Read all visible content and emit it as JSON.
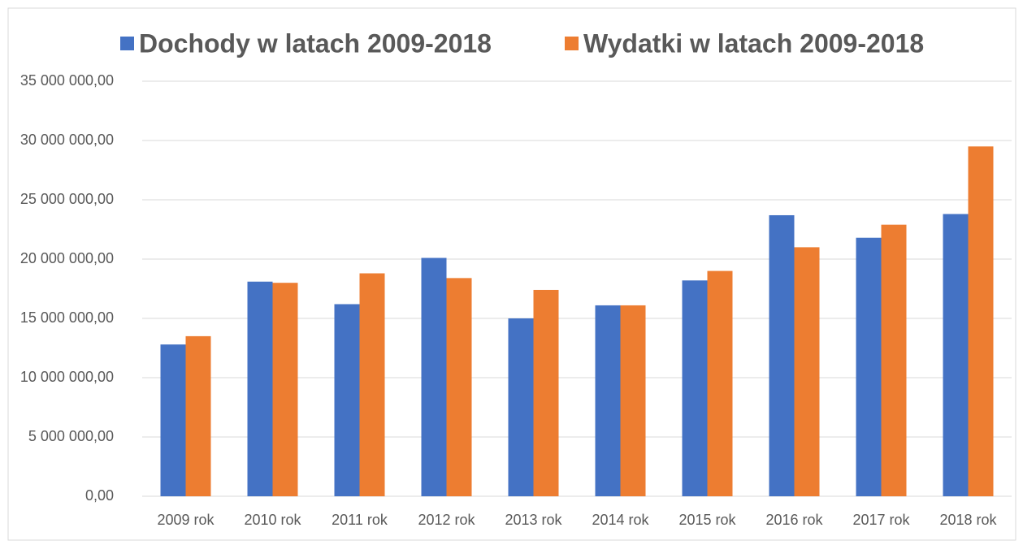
{
  "chart_data": {
    "type": "bar",
    "categories": [
      "2009 rok",
      "2010 rok",
      "2011 rok",
      "2012 rok",
      "2013 rok",
      "2014 rok",
      "2015 rok",
      "2016 rok",
      "2017 rok",
      "2018 rok"
    ],
    "series": [
      {
        "name": "Dochody w latach 2009-2018",
        "color": "#4472c4",
        "values": [
          12800000,
          18100000,
          16200000,
          20100000,
          15000000,
          16100000,
          18200000,
          23700000,
          21800000,
          23800000
        ]
      },
      {
        "name": "Wydatki w latach 2009-2018",
        "color": "#ed7d31",
        "values": [
          13500000,
          18000000,
          18800000,
          18400000,
          17400000,
          16100000,
          19000000,
          21000000,
          22900000,
          29500000
        ]
      }
    ],
    "ylim": [
      0,
      35000000
    ],
    "yticks": [
      {
        "value": 0,
        "label": "0,00"
      },
      {
        "value": 5000000,
        "label": "5 000 000,00"
      },
      {
        "value": 10000000,
        "label": "10 000 000,00"
      },
      {
        "value": 15000000,
        "label": "15 000 000,00"
      },
      {
        "value": 20000000,
        "label": "20 000 000,00"
      },
      {
        "value": 25000000,
        "label": "25 000 000,00"
      },
      {
        "value": 30000000,
        "label": "30 000 000,00"
      },
      {
        "value": 35000000,
        "label": "35 000 000,00"
      }
    ],
    "grid": true,
    "legend": "top"
  }
}
